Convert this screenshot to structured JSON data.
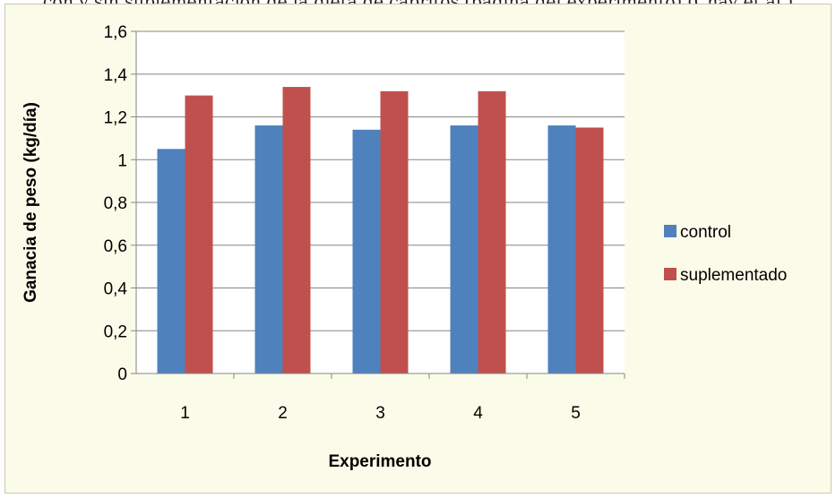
{
  "caption": "con y sin suplementación de la dieta de cabritos (página del experimento) (Chay et al.)",
  "chart_data": {
    "type": "bar",
    "title": "",
    "xlabel": "Experimento",
    "ylabel": "Ganacia de peso (kg/día)",
    "categories": [
      "1",
      "2",
      "3",
      "4",
      "5"
    ],
    "series": [
      {
        "name": "control",
        "color": "#4f81bd",
        "values": [
          1.05,
          1.16,
          1.14,
          1.16,
          1.16
        ]
      },
      {
        "name": "suplementado",
        "color": "#c0504d",
        "values": [
          1.3,
          1.34,
          1.32,
          1.32,
          1.15
        ]
      }
    ],
    "ylim": [
      0,
      1.6
    ],
    "yticks": [
      "0",
      "0,2",
      "0,4",
      "0,6",
      "0,8",
      "1",
      "1,2",
      "1,4",
      "1,6"
    ],
    "grid": true,
    "legend_position": "right"
  }
}
